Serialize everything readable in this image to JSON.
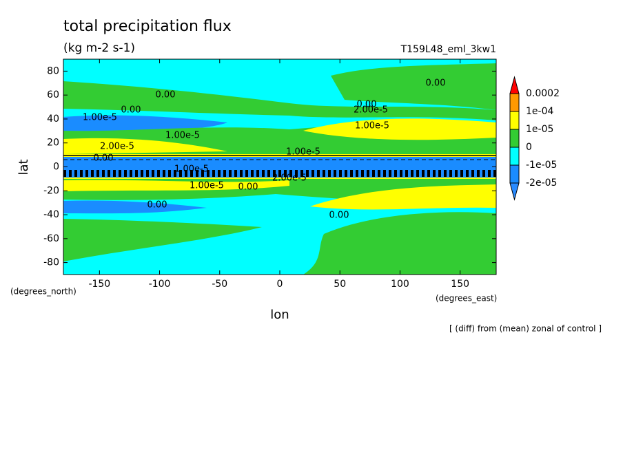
{
  "chart_data": {
    "type": "contour",
    "title": "total precipitation flux",
    "subtitle": "(kg m-2 s-1)",
    "dataset": "T159L48_eml_3kw1",
    "x_label": "lon",
    "y_label": "lat",
    "x_units": "(degrees_east)",
    "y_units": "(degrees_north)",
    "note": "[ (diff) from (mean) zonal of control ]",
    "xlim": [
      -180,
      180
    ],
    "ylim": [
      -90,
      90
    ],
    "xticks": [
      -150,
      -100,
      -50,
      0,
      50,
      100,
      150
    ],
    "yticks": [
      -80,
      -60,
      -40,
      -20,
      0,
      20,
      40,
      60,
      80
    ],
    "levels": [
      {
        "value": -2e-05,
        "label": "-2e-05"
      },
      {
        "value": -1e-05,
        "label": "-1e-05"
      },
      0,
      {
        "value": 1e-05,
        "label": "1e-05"
      },
      {
        "value": 0.0001,
        "label": "1e-04"
      },
      0.0002
    ],
    "colors": [
      "#2a8bff",
      "#1a8cff",
      "#00ffff",
      "#33cc33",
      "#ffff00",
      "#ff9900",
      "#ff0000"
    ],
    "contour_labels": [
      "0.00",
      "0.00",
      "1.00e-5",
      "0.00",
      "2.00e-5",
      "1.00e-5",
      "2.00e-5",
      "1.00e-5",
      "0.00",
      "1.00e-5",
      "1.00e-5",
      "2.00e-5",
      "0.00",
      "1.00e-5",
      "0.00",
      "0.00",
      "0.00"
    ]
  }
}
